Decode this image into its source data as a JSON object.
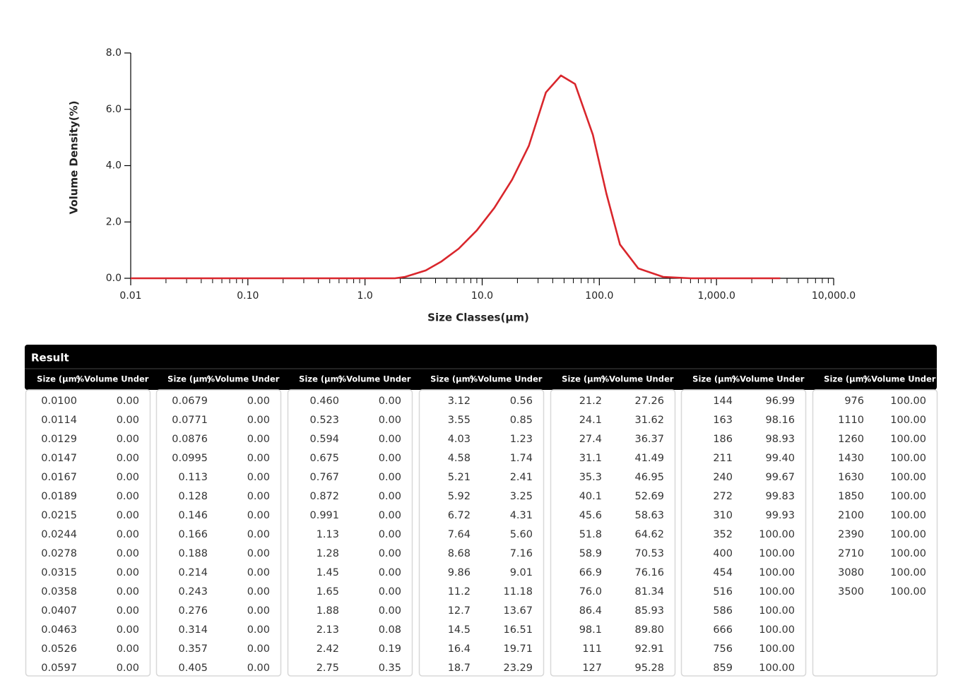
{
  "chart_data": {
    "type": "line",
    "xscale": "log",
    "xlabel": "Size Classes(μm)",
    "ylabel": "Volume Density(%)",
    "x": [
      0.01,
      1.8,
      2.2,
      3.3,
      4.5,
      6.3,
      9,
      12.7,
      18,
      25,
      35,
      47,
      62,
      88,
      115,
      150,
      215,
      350,
      600,
      3500
    ],
    "series": [
      {
        "name": "Volume Density",
        "color": "#d9262c",
        "values": [
          0,
          0,
          0.05,
          0.28,
          0.6,
          1.05,
          1.7,
          2.5,
          3.5,
          4.7,
          6.6,
          7.2,
          6.9,
          5.1,
          3.0,
          1.2,
          0.35,
          0.05,
          0,
          0
        ]
      }
    ],
    "xlim": [
      0.01,
      10000
    ],
    "xticks": [
      0.01,
      {
        "value": 0.1,
        "label": "0.10"
      },
      {
        "value": 1,
        "label": "1.0"
      },
      {
        "value": 10,
        "label": "10.0"
      },
      {
        "value": 100,
        "label": "100.0"
      },
      {
        "value": 1000,
        "label": "1,000.0"
      },
      {
        "value": 10000,
        "label": "10,000.0"
      }
    ],
    "ylim": [
      0,
      8
    ],
    "yticks": [
      {
        "value": 0,
        "label": "0.0"
      },
      {
        "value": 2,
        "label": "2.0"
      },
      {
        "value": 4,
        "label": "4.0"
      },
      {
        "value": 6,
        "label": "6.0"
      },
      {
        "value": 8,
        "label": "8.0"
      }
    ]
  },
  "table": {
    "title": "Result",
    "headers": [
      "Size (μm)",
      "%Volume Under"
    ],
    "groups": [
      [
        [
          "0.0100",
          "0.00"
        ],
        [
          "0.0114",
          "0.00"
        ],
        [
          "0.0129",
          "0.00"
        ],
        [
          "0.0147",
          "0.00"
        ],
        [
          "0.0167",
          "0.00"
        ],
        [
          "0.0189",
          "0.00"
        ],
        [
          "0.0215",
          "0.00"
        ],
        [
          "0.0244",
          "0.00"
        ],
        [
          "0.0278",
          "0.00"
        ],
        [
          "0.0315",
          "0.00"
        ],
        [
          "0.0358",
          "0.00"
        ],
        [
          "0.0407",
          "0.00"
        ],
        [
          "0.0463",
          "0.00"
        ],
        [
          "0.0526",
          "0.00"
        ],
        [
          "0.0597",
          "0.00"
        ]
      ],
      [
        [
          "0.0679",
          "0.00"
        ],
        [
          "0.0771",
          "0.00"
        ],
        [
          "0.0876",
          "0.00"
        ],
        [
          "0.0995",
          "0.00"
        ],
        [
          "0.113",
          "0.00"
        ],
        [
          "0.128",
          "0.00"
        ],
        [
          "0.146",
          "0.00"
        ],
        [
          "0.166",
          "0.00"
        ],
        [
          "0.188",
          "0.00"
        ],
        [
          "0.214",
          "0.00"
        ],
        [
          "0.243",
          "0.00"
        ],
        [
          "0.276",
          "0.00"
        ],
        [
          "0.314",
          "0.00"
        ],
        [
          "0.357",
          "0.00"
        ],
        [
          "0.405",
          "0.00"
        ]
      ],
      [
        [
          "0.460",
          "0.00"
        ],
        [
          "0.523",
          "0.00"
        ],
        [
          "0.594",
          "0.00"
        ],
        [
          "0.675",
          "0.00"
        ],
        [
          "0.767",
          "0.00"
        ],
        [
          "0.872",
          "0.00"
        ],
        [
          "0.991",
          "0.00"
        ],
        [
          "1.13",
          "0.00"
        ],
        [
          "1.28",
          "0.00"
        ],
        [
          "1.45",
          "0.00"
        ],
        [
          "1.65",
          "0.00"
        ],
        [
          "1.88",
          "0.00"
        ],
        [
          "2.13",
          "0.08"
        ],
        [
          "2.42",
          "0.19"
        ],
        [
          "2.75",
          "0.35"
        ]
      ],
      [
        [
          "3.12",
          "0.56"
        ],
        [
          "3.55",
          "0.85"
        ],
        [
          "4.03",
          "1.23"
        ],
        [
          "4.58",
          "1.74"
        ],
        [
          "5.21",
          "2.41"
        ],
        [
          "5.92",
          "3.25"
        ],
        [
          "6.72",
          "4.31"
        ],
        [
          "7.64",
          "5.60"
        ],
        [
          "8.68",
          "7.16"
        ],
        [
          "9.86",
          "9.01"
        ],
        [
          "11.2",
          "11.18"
        ],
        [
          "12.7",
          "13.67"
        ],
        [
          "14.5",
          "16.51"
        ],
        [
          "16.4",
          "19.71"
        ],
        [
          "18.7",
          "23.29"
        ]
      ],
      [
        [
          "21.2",
          "27.26"
        ],
        [
          "24.1",
          "31.62"
        ],
        [
          "27.4",
          "36.37"
        ],
        [
          "31.1",
          "41.49"
        ],
        [
          "35.3",
          "46.95"
        ],
        [
          "40.1",
          "52.69"
        ],
        [
          "45.6",
          "58.63"
        ],
        [
          "51.8",
          "64.62"
        ],
        [
          "58.9",
          "70.53"
        ],
        [
          "66.9",
          "76.16"
        ],
        [
          "76.0",
          "81.34"
        ],
        [
          "86.4",
          "85.93"
        ],
        [
          "98.1",
          "89.80"
        ],
        [
          "111",
          "92.91"
        ],
        [
          "127",
          "95.28"
        ]
      ],
      [
        [
          "144",
          "96.99"
        ],
        [
          "163",
          "98.16"
        ],
        [
          "186",
          "98.93"
        ],
        [
          "211",
          "99.40"
        ],
        [
          "240",
          "99.67"
        ],
        [
          "272",
          "99.83"
        ],
        [
          "310",
          "99.93"
        ],
        [
          "352",
          "100.00"
        ],
        [
          "400",
          "100.00"
        ],
        [
          "454",
          "100.00"
        ],
        [
          "516",
          "100.00"
        ],
        [
          "586",
          "100.00"
        ],
        [
          "666",
          "100.00"
        ],
        [
          "756",
          "100.00"
        ],
        [
          "859",
          "100.00"
        ]
      ],
      [
        [
          "976",
          "100.00"
        ],
        [
          "1110",
          "100.00"
        ],
        [
          "1260",
          "100.00"
        ],
        [
          "1430",
          "100.00"
        ],
        [
          "1630",
          "100.00"
        ],
        [
          "1850",
          "100.00"
        ],
        [
          "2100",
          "100.00"
        ],
        [
          "2390",
          "100.00"
        ],
        [
          "2710",
          "100.00"
        ],
        [
          "3080",
          "100.00"
        ],
        [
          "3500",
          "100.00"
        ]
      ]
    ]
  }
}
